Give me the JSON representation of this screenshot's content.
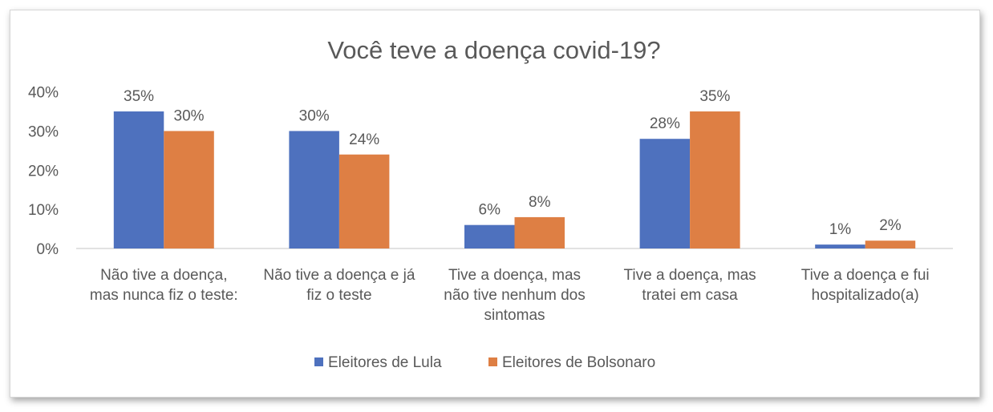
{
  "chart_data": {
    "type": "bar",
    "title": "Você teve a doença covid-19?",
    "categories": [
      [
        "Não tive a doença,",
        "mas nunca fiz o teste:"
      ],
      [
        "Não tive a doença e já",
        "fiz o teste"
      ],
      [
        "Tive a doença, mas",
        "não tive nenhum dos",
        "sintomas"
      ],
      [
        "Tive a doença, mas",
        "tratei em casa"
      ],
      [
        "Tive a doença e fui",
        "hospitalizado(a)"
      ]
    ],
    "series": [
      {
        "name": "Eleitores de Lula",
        "values": [
          35,
          30,
          6,
          28,
          1
        ],
        "labels": [
          "35%",
          "30%",
          "6%",
          "28%",
          "1%"
        ],
        "color": "#4E71BE"
      },
      {
        "name": "Eleitores de Bolsonaro",
        "values": [
          30,
          24,
          8,
          35,
          2
        ],
        "labels": [
          "30%",
          "24%",
          "8%",
          "35%",
          "2%"
        ],
        "color": "#DE7F44"
      }
    ],
    "ylim": [
      0,
      40
    ],
    "yticks": [
      "0%",
      "10%",
      "20%",
      "30%",
      "40%"
    ],
    "grid": false,
    "legend": "bottom"
  }
}
